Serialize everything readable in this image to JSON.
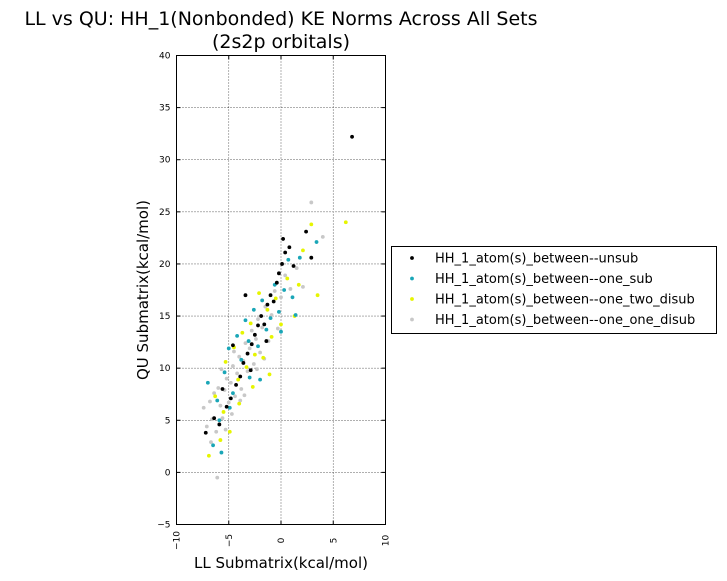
{
  "chart_data": {
    "type": "scatter",
    "title_line1": "LL vs QU: HH_1(Nonbonded) KE Norms Across All Sets",
    "title_line2": "(2s2p orbitals)",
    "xlabel": "LL Submatrix(kcal/mol)",
    "ylabel": "QU Submatrix(kcal/mol)",
    "xlim": [
      -10,
      10
    ],
    "ylim": [
      -5,
      40
    ],
    "x_ticks": [
      -10,
      -5,
      0,
      5,
      10
    ],
    "y_ticks": [
      -5,
      0,
      5,
      10,
      15,
      20,
      25,
      30,
      35,
      40
    ],
    "grid": true,
    "legend_position": "right",
    "series": [
      {
        "name": "HH_1_atom(s)_between--unsub",
        "color": "#000000",
        "points": [
          [
            -7.2,
            3.8
          ],
          [
            -6.4,
            5.2
          ],
          [
            -5.9,
            4.6
          ],
          [
            -5.2,
            6.3
          ],
          [
            -4.8,
            7.1
          ],
          [
            -4.3,
            8.4
          ],
          [
            -3.9,
            9.2
          ],
          [
            -3.6,
            10.5
          ],
          [
            -3.2,
            11.4
          ],
          [
            -2.8,
            12.3
          ],
          [
            -2.5,
            13.2
          ],
          [
            -2.2,
            14.1
          ],
          [
            -1.9,
            15.0
          ],
          [
            -1.6,
            14.2
          ],
          [
            -1.3,
            16.1
          ],
          [
            -1.0,
            17.0
          ],
          [
            -0.7,
            16.4
          ],
          [
            -0.4,
            18.2
          ],
          [
            -0.2,
            19.1
          ],
          [
            0.1,
            20.0
          ],
          [
            0.4,
            21.1
          ],
          [
            0.8,
            21.6
          ],
          [
            1.2,
            19.8
          ],
          [
            2.4,
            23.1
          ],
          [
            2.9,
            20.6
          ],
          [
            6.8,
            32.2
          ],
          [
            -3.4,
            17.0
          ],
          [
            -5.6,
            8.0
          ],
          [
            -4.6,
            12.2
          ],
          [
            -2.9,
            9.8
          ],
          [
            -1.4,
            12.6
          ],
          [
            0.2,
            22.4
          ]
        ]
      },
      {
        "name": "HH_1_atom(s)_between--one_sub",
        "color": "#1aa6b7",
        "points": [
          [
            -7.0,
            8.6
          ],
          [
            -6.5,
            2.6
          ],
          [
            -6.1,
            6.9
          ],
          [
            -5.7,
            1.9
          ],
          [
            -5.4,
            9.6
          ],
          [
            -5.0,
            11.9
          ],
          [
            -4.6,
            7.6
          ],
          [
            -4.2,
            13.1
          ],
          [
            -3.8,
            10.8
          ],
          [
            -3.4,
            14.6
          ],
          [
            -3.0,
            9.1
          ],
          [
            -2.6,
            15.6
          ],
          [
            -2.2,
            12.1
          ],
          [
            -1.8,
            16.5
          ],
          [
            -1.4,
            13.7
          ],
          [
            -1.0,
            14.8
          ],
          [
            -0.6,
            18.0
          ],
          [
            -0.2,
            15.4
          ],
          [
            0.3,
            17.5
          ],
          [
            0.7,
            20.4
          ],
          [
            1.1,
            16.8
          ],
          [
            1.8,
            20.6
          ],
          [
            3.4,
            22.1
          ],
          [
            -5.9,
            5.0
          ],
          [
            -4.9,
            6.2
          ],
          [
            -3.1,
            12.6
          ],
          [
            -2.0,
            8.9
          ],
          [
            0.0,
            13.5
          ],
          [
            1.4,
            15.1
          ]
        ]
      },
      {
        "name": "HH_1_atom(s)_between--one_two_disub",
        "color": "#e6f500",
        "points": [
          [
            -6.9,
            1.6
          ],
          [
            -6.3,
            7.3
          ],
          [
            -5.8,
            3.1
          ],
          [
            -5.3,
            10.6
          ],
          [
            -4.9,
            3.9
          ],
          [
            -4.5,
            12.0
          ],
          [
            -4.1,
            8.9
          ],
          [
            -3.7,
            13.4
          ],
          [
            -3.3,
            10.1
          ],
          [
            -2.9,
            14.3
          ],
          [
            -2.5,
            11.3
          ],
          [
            -2.1,
            17.2
          ],
          [
            -1.7,
            11.0
          ],
          [
            -1.3,
            15.6
          ],
          [
            -0.9,
            13.0
          ],
          [
            -0.5,
            16.7
          ],
          [
            0.0,
            14.2
          ],
          [
            0.6,
            18.6
          ],
          [
            1.3,
            15.0
          ],
          [
            1.7,
            18.0
          ],
          [
            2.1,
            21.3
          ],
          [
            2.9,
            23.8
          ],
          [
            3.5,
            17.0
          ],
          [
            6.2,
            24.0
          ],
          [
            -5.5,
            5.8
          ],
          [
            -4.0,
            6.6
          ],
          [
            -2.7,
            8.2
          ],
          [
            -1.1,
            9.4
          ]
        ]
      },
      {
        "name": "HH_1_atom(s)_between--one_one_disub",
        "color": "#c8c8c8",
        "points": [
          [
            -7.4,
            6.2
          ],
          [
            -7.1,
            4.4
          ],
          [
            -6.8,
            6.8
          ],
          [
            -6.6,
            5.1
          ],
          [
            -6.4,
            7.6
          ],
          [
            -6.2,
            3.9
          ],
          [
            -6.0,
            8.1
          ],
          [
            -5.8,
            6.4
          ],
          [
            -5.6,
            5.2
          ],
          [
            -5.4,
            7.9
          ],
          [
            -5.2,
            9.0
          ],
          [
            -5.0,
            6.7
          ],
          [
            -4.8,
            8.6
          ],
          [
            -4.6,
            10.2
          ],
          [
            -4.4,
            7.3
          ],
          [
            -4.2,
            9.5
          ],
          [
            -4.0,
            11.1
          ],
          [
            -3.8,
            8.0
          ],
          [
            -3.6,
            10.7
          ],
          [
            -3.4,
            12.4
          ],
          [
            -3.2,
            9.7
          ],
          [
            -3.0,
            11.9
          ],
          [
            -2.8,
            13.6
          ],
          [
            -2.6,
            10.4
          ],
          [
            -2.4,
            12.8
          ],
          [
            -2.2,
            14.7
          ],
          [
            -2.0,
            11.5
          ],
          [
            -1.8,
            13.9
          ],
          [
            -1.5,
            15.9
          ],
          [
            -1.2,
            12.6
          ],
          [
            -0.9,
            15.1
          ],
          [
            -0.6,
            17.4
          ],
          [
            -0.3,
            13.8
          ],
          [
            0.0,
            16.8
          ],
          [
            0.4,
            18.9
          ],
          [
            0.9,
            17.6
          ],
          [
            1.5,
            19.6
          ],
          [
            2.1,
            17.8
          ],
          [
            2.9,
            25.9
          ],
          [
            4.0,
            22.6
          ],
          [
            -6.1,
            -0.5
          ],
          [
            -5.3,
            4.1
          ],
          [
            -4.7,
            5.6
          ],
          [
            -3.9,
            6.9
          ],
          [
            -6.7,
            2.9
          ],
          [
            -5.7,
            9.9
          ],
          [
            -4.5,
            11.6
          ],
          [
            -3.5,
            7.4
          ],
          [
            -2.3,
            9.9
          ],
          [
            -1.6,
            10.9
          ]
        ]
      }
    ]
  }
}
